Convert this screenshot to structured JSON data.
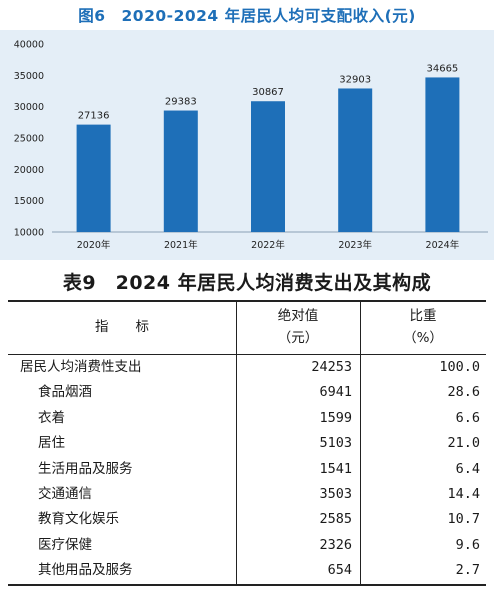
{
  "chart_title": "图6　2020-2024 年居民人均可支配收入(元)",
  "chart_data": {
    "type": "bar",
    "title": "图6　2020-2024 年居民人均可支配收入(元)",
    "categories": [
      "2020年",
      "2021年",
      "2022年",
      "2023年",
      "2024年"
    ],
    "values": [
      27136,
      29383,
      30867,
      32903,
      34665
    ],
    "yticks": [
      10000,
      15000,
      20000,
      25000,
      30000,
      35000,
      40000
    ],
    "ylim": [
      10000,
      40000
    ],
    "bar_color": "#1e6fb8",
    "grid": false,
    "legend": "none"
  },
  "table": {
    "title": "表9　2024 年居民人均消费支出及其构成",
    "headers": {
      "indicator": "指　　标",
      "absolute_line1": "绝对值",
      "absolute_line2": "（元）",
      "ratio_line1": "比重",
      "ratio_line2": "（%）"
    },
    "rows": [
      {
        "name": "居民人均消费性支出",
        "value": "24253",
        "ratio": "100.0"
      },
      {
        "name": "食品烟酒",
        "value": "6941",
        "ratio": "28.6"
      },
      {
        "name": "衣着",
        "value": "1599",
        "ratio": "6.6"
      },
      {
        "name": "居住",
        "value": "5103",
        "ratio": "21.0"
      },
      {
        "name": "生活用品及服务",
        "value": "1541",
        "ratio": "6.4"
      },
      {
        "name": "交通通信",
        "value": "3503",
        "ratio": "14.4"
      },
      {
        "name": "教育文化娱乐",
        "value": "2585",
        "ratio": "10.7"
      },
      {
        "name": "医疗保健",
        "value": "2326",
        "ratio": "9.6"
      },
      {
        "name": "其他用品及服务",
        "value": "654",
        "ratio": "2.7"
      }
    ]
  }
}
